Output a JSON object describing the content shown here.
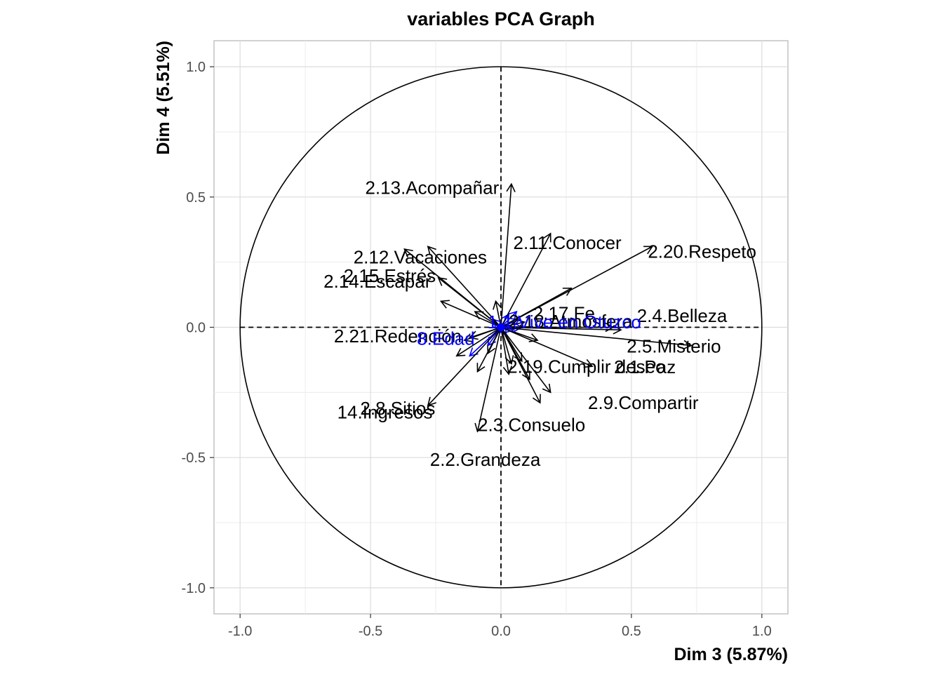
{
  "chart_data": {
    "type": "scatter",
    "title": "variables PCA Graph",
    "xlabel": "Dim 3 (5.87%)",
    "ylabel": "Dim 4 (5.51%)",
    "xlim": [
      -1.1,
      1.1
    ],
    "ylim": [
      -1.1,
      1.1
    ],
    "xticks": [
      -1.0,
      -0.5,
      0.0,
      0.5,
      1.0
    ],
    "yticks": [
      -1.0,
      -0.5,
      0.0,
      0.5,
      1.0
    ],
    "xtick_labels": [
      "-1.0",
      "-0.5",
      "0.0",
      "0.5",
      "1.0"
    ],
    "ytick_labels": [
      "-1.0",
      "-0.5",
      "0.0",
      "0.5",
      "1.0"
    ],
    "grid": true,
    "unit_circle": true,
    "colors": {
      "active": "#000000",
      "supplementary": "#0000ff"
    },
    "variables": [
      {
        "label": "2.13.Acompañar",
        "x": 0.04,
        "y": 0.55,
        "group": "active"
      },
      {
        "label": "2.11.Conocer",
        "x": 0.19,
        "y": 0.36,
        "group": "active"
      },
      {
        "label": "2.20.Respeto",
        "x": 0.58,
        "y": 0.31,
        "group": "active"
      },
      {
        "label": "2.18.Atmósfera",
        "x": 0.27,
        "y": 0.15,
        "group": "active"
      },
      {
        "label": "2.12.Vacaciones",
        "x": -0.28,
        "y": 0.31,
        "group": "active"
      },
      {
        "label": "2.15.Estrés",
        "x": -0.37,
        "y": 0.3,
        "group": "active"
      },
      {
        "label": "2.14.Escapar",
        "x": -0.24,
        "y": 0.19,
        "group": "active"
      },
      {
        "label": "2.17.Fe",
        "x": 0.43,
        "y": 0.0,
        "group": "active"
      },
      {
        "label": "2.4.Belleza",
        "x": 0.46,
        "y": -0.01,
        "group": "active"
      },
      {
        "label": "2.5.Misterio",
        "x": 0.73,
        "y": -0.07,
        "group": "active"
      },
      {
        "label": "2.1.Paz",
        "x": 0.35,
        "y": -0.15,
        "group": "active"
      },
      {
        "label": "2.21.Redención",
        "x": -0.14,
        "y": -0.05,
        "group": "active"
      },
      {
        "label": "1.1.Vive en Otuzco",
        "x": -0.01,
        "y": -0.02,
        "group": "supplementary"
      },
      {
        "label": "8.Edad",
        "x": -0.12,
        "y": -0.11,
        "group": "supplementary"
      },
      {
        "label": "2.19.Cumplir deseo",
        "x": 0.04,
        "y": -0.14,
        "group": "active"
      },
      {
        "label": "2.8.Sitios",
        "x": -0.28,
        "y": -0.3,
        "group": "active"
      },
      {
        "label": "2.3.Consuelo",
        "x": 0.19,
        "y": -0.25,
        "group": "active"
      },
      {
        "label": "14.Ingresos",
        "x": -0.09,
        "y": -0.17,
        "group": "active"
      },
      {
        "label": "2.9.Compartir",
        "x": 0.15,
        "y": -0.29,
        "group": "active"
      },
      {
        "label": "2.2.Grandeza",
        "x": -0.09,
        "y": -0.4,
        "group": "active"
      }
    ],
    "extra_arrows": [
      {
        "x": -0.23,
        "y": 0.1,
        "group": "active"
      },
      {
        "x": -0.1,
        "y": 0.06,
        "group": "active"
      },
      {
        "x": -0.02,
        "y": 0.1,
        "group": "active"
      },
      {
        "x": 0.09,
        "y": 0.02,
        "group": "active"
      },
      {
        "x": 0.14,
        "y": -0.05,
        "group": "active"
      },
      {
        "x": 0.08,
        "y": -0.13,
        "group": "active"
      },
      {
        "x": 0.11,
        "y": -0.2,
        "group": "active"
      },
      {
        "x": 0.03,
        "y": -0.18,
        "group": "active"
      },
      {
        "x": -0.05,
        "y": -0.1,
        "group": "active"
      },
      {
        "x": -0.17,
        "y": -0.11,
        "group": "active"
      },
      {
        "x": -0.12,
        "y": -0.04,
        "group": "active"
      },
      {
        "x": 0.06,
        "y": 0.06,
        "group": "supplementary"
      },
      {
        "x": 0.03,
        "y": 0.05,
        "group": "supplementary"
      },
      {
        "x": 0.07,
        "y": 0.03,
        "group": "supplementary"
      },
      {
        "x": 0.08,
        "y": 0.0,
        "group": "supplementary"
      },
      {
        "x": 0.05,
        "y": -0.01,
        "group": "supplementary"
      },
      {
        "x": -0.05,
        "y": -0.07,
        "group": "supplementary"
      },
      {
        "x": -0.03,
        "y": 0.03,
        "group": "supplementary"
      },
      {
        "x": 0.02,
        "y": -0.03,
        "group": "supplementary"
      }
    ]
  }
}
